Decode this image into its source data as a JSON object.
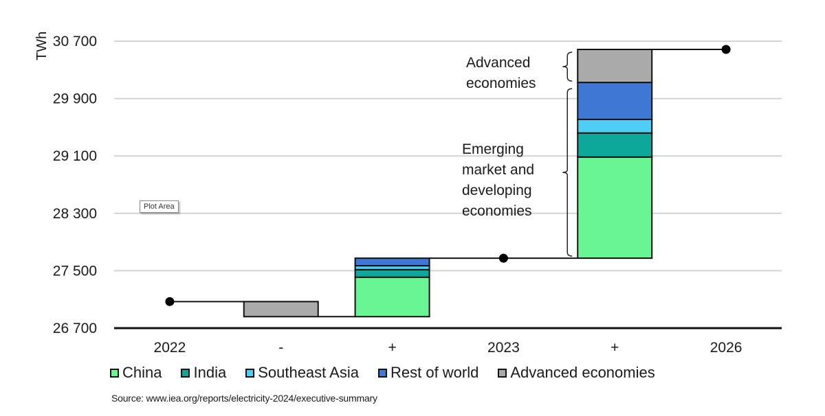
{
  "chart_data": {
    "type": "bar",
    "subtype": "waterfall",
    "title": "",
    "xlabel": "",
    "ylabel": "TWh",
    "ylim": [
      26700,
      30700
    ],
    "yticks": [
      26700,
      27500,
      28300,
      29100,
      29900,
      30700
    ],
    "ytick_labels": [
      "26 700",
      "27 500",
      "28 300",
      "29 100",
      "29 900",
      "30 700"
    ],
    "grid": true,
    "categories": [
      "2022",
      "-",
      "+",
      "2023",
      "+",
      "2026"
    ],
    "levels": {
      "2022": 27070,
      "2023": 27675,
      "2026": 30585
    },
    "series": [
      {
        "name": "China",
        "color": "#6af595",
        "values": [
          null,
          0,
          550,
          null,
          1410,
          null
        ]
      },
      {
        "name": "India",
        "color": "#0ea89a",
        "values": [
          null,
          0,
          105,
          null,
          335,
          null
        ]
      },
      {
        "name": "Southeast Asia",
        "color": "#4dcff5",
        "values": [
          null,
          0,
          55,
          null,
          190,
          null
        ]
      },
      {
        "name": "Rest of world",
        "color": "#3f78d4",
        "values": [
          null,
          0,
          105,
          null,
          515,
          null
        ]
      },
      {
        "name": "Advanced economies",
        "color": "#aaaaaa",
        "values": [
          null,
          -210,
          0,
          null,
          460,
          null
        ]
      }
    ],
    "annotations": [
      {
        "text_lines": [
          "Advanced",
          "economies"
        ],
        "brace_for": "Advanced economies",
        "category": "2026-increase"
      },
      {
        "text_lines": [
          "Emerging",
          "market and",
          "developing",
          "economies"
        ],
        "brace_for": "China, India, Southeast Asia, Rest of world",
        "category": "2026-increase"
      }
    ],
    "legend_position": "bottom"
  },
  "source_text": "Source: www.iea.org/reports/electricity-2024/executive-summary",
  "tooltip_text": "Plot Area"
}
